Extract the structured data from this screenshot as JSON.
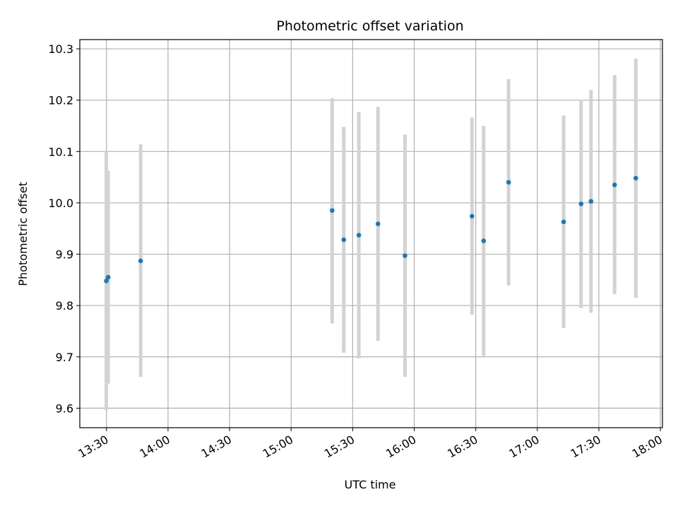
{
  "chart_data": {
    "type": "scatter",
    "title": "Photometric offset variation",
    "xlabel": "UTC time",
    "ylabel": "Photometric offset",
    "x_ticks": [
      "13:30",
      "14:00",
      "14:30",
      "15:00",
      "15:30",
      "16:00",
      "16:30",
      "17:00",
      "17:30",
      "18:00"
    ],
    "y_ticks": [
      "9.6",
      "9.7",
      "9.8",
      "9.9",
      "10.0",
      "10.1",
      "10.2",
      "10.3"
    ],
    "xlim": [
      "13:17",
      "18:01"
    ],
    "ylim": [
      9.562,
      10.318
    ],
    "grid": true,
    "series": [
      {
        "marker_color": "#1f77b4",
        "errorbar_color": "#d3d3d3",
        "points": [
          {
            "x": "13:29:55",
            "y": 9.848,
            "ylow": 9.596,
            "yhigh": 10.1
          },
          {
            "x": "13:30:50",
            "y": 9.855,
            "ylow": 9.648,
            "yhigh": 10.062
          },
          {
            "x": "13:46:40",
            "y": 9.887,
            "ylow": 9.661,
            "yhigh": 10.114
          },
          {
            "x": "15:20:00",
            "y": 9.985,
            "ylow": 9.765,
            "yhigh": 10.204
          },
          {
            "x": "15:25:40",
            "y": 9.928,
            "ylow": 9.708,
            "yhigh": 10.148
          },
          {
            "x": "15:33:00",
            "y": 9.937,
            "ylow": 9.697,
            "yhigh": 10.177
          },
          {
            "x": "15:42:20",
            "y": 9.959,
            "ylow": 9.731,
            "yhigh": 10.187
          },
          {
            "x": "15:55:30",
            "y": 9.897,
            "ylow": 9.661,
            "yhigh": 10.133
          },
          {
            "x": "16:28:10",
            "y": 9.974,
            "ylow": 9.782,
            "yhigh": 10.166
          },
          {
            "x": "16:33:50",
            "y": 9.926,
            "ylow": 9.702,
            "yhigh": 10.15
          },
          {
            "x": "16:46:00",
            "y": 10.04,
            "ylow": 9.839,
            "yhigh": 10.241
          },
          {
            "x": "17:12:50",
            "y": 9.963,
            "ylow": 9.756,
            "yhigh": 10.17
          },
          {
            "x": "17:21:20",
            "y": 9.998,
            "ylow": 9.795,
            "yhigh": 10.201
          },
          {
            "x": "17:26:10",
            "y": 10.003,
            "ylow": 9.786,
            "yhigh": 10.22
          },
          {
            "x": "17:37:40",
            "y": 10.035,
            "ylow": 9.822,
            "yhigh": 10.249
          },
          {
            "x": "17:48:00",
            "y": 10.048,
            "ylow": 9.815,
            "yhigh": 10.281
          }
        ]
      }
    ]
  }
}
